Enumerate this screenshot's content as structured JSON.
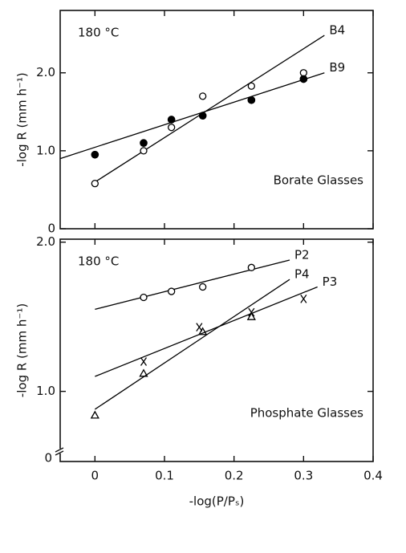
{
  "chart_data": [
    {
      "type": "scatter",
      "annotation": "180 °C",
      "group_label": "Borate Glasses",
      "ylabel": "-log R (mm h⁻¹)",
      "xlim": [
        -0.05,
        0.4
      ],
      "xticks": [
        0,
        0.1,
        0.2,
        0.3,
        0.4
      ],
      "show_xtick_labels": false,
      "ylim": [
        0,
        2.8
      ],
      "yticks": [
        0,
        {
          "value": 1,
          "label": "1.0"
        },
        {
          "value": 2,
          "label": "2.0"
        }
      ],
      "series": [
        {
          "name": "B4",
          "color": "#000000",
          "marker": "open-circle",
          "x": [
            0,
            0.07,
            0.11,
            0.155,
            0.225,
            0.3
          ],
          "values": [
            0.58,
            1.0,
            1.3,
            1.7,
            1.83,
            2.0
          ],
          "fit_x": [
            -0.005,
            0.33
          ],
          "fit_y": [
            0.57,
            2.48
          ]
        },
        {
          "name": "B9",
          "color": "#000000",
          "marker": "filled-circle",
          "x": [
            0,
            0.07,
            0.11,
            0.155,
            0.225,
            0.3
          ],
          "values": [
            0.95,
            1.1,
            1.4,
            1.45,
            1.65,
            1.92
          ],
          "fit_x": [
            -0.05,
            0.33
          ],
          "fit_y": [
            0.9,
            2.0
          ]
        }
      ]
    },
    {
      "type": "scatter",
      "annotation": "180 °C",
      "group_label": "Phosphate Glasses",
      "ylabel": "-log R (mm h⁻¹)",
      "xlabel": "-log(P/Pₛ)",
      "axis_break_label": "0",
      "xlim": [
        -0.05,
        0.4
      ],
      "xticks": [
        0,
        0.1,
        0.2,
        0.3,
        0.4
      ],
      "show_xtick_labels": true,
      "ylim": [
        0.53,
        2.02
      ],
      "yticks": [
        {
          "value": 1,
          "label": "1.0"
        },
        {
          "value": 2,
          "label": "2.0"
        }
      ],
      "series": [
        {
          "name": "P2",
          "color": "#000000",
          "marker": "open-circle",
          "x": [
            0.07,
            0.11,
            0.155,
            0.225
          ],
          "values": [
            1.63,
            1.67,
            1.7,
            1.83
          ],
          "fit_x": [
            0,
            0.28
          ],
          "fit_y": [
            1.55,
            1.88
          ]
        },
        {
          "name": "P4",
          "color": "#000000",
          "marker": "triangle",
          "x": [
            0,
            0.07,
            0.155,
            0.225
          ],
          "values": [
            0.84,
            1.12,
            1.4,
            1.5
          ],
          "fit_x": [
            0,
            0.28
          ],
          "fit_y": [
            0.88,
            1.75
          ]
        },
        {
          "name": "P3",
          "color": "#000000",
          "marker": "cross",
          "x": [
            0.07,
            0.15,
            0.225,
            0.3
          ],
          "values": [
            1.2,
            1.43,
            1.53,
            1.62
          ],
          "fit_x": [
            0,
            0.32
          ],
          "fit_y": [
            1.1,
            1.7
          ]
        }
      ]
    }
  ]
}
